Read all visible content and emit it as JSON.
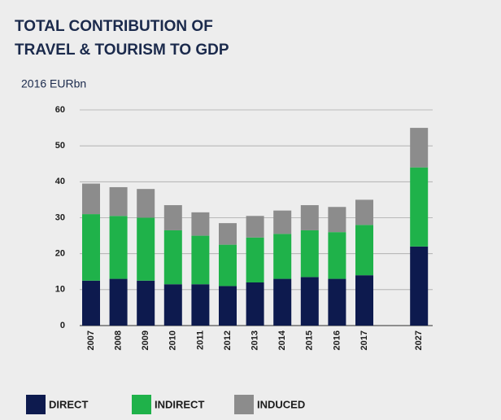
{
  "chart_data": {
    "type": "stacked_bar",
    "title": [
      "TOTAL CONTRIBUTION OF",
      "TRAVEL & TOURISM TO GDP"
    ],
    "y_label": "2016 EURbn",
    "categories": [
      "2007",
      "2008",
      "2009",
      "2010",
      "2011",
      "2012",
      "2013",
      "2014",
      "2015",
      "2016",
      "2017",
      "2027"
    ],
    "series": [
      {
        "name": "DIRECT",
        "color": "#0d1a4e",
        "values": [
          12.5,
          13,
          12.5,
          11.5,
          11.5,
          11,
          12,
          13,
          13.5,
          13,
          14,
          22
        ]
      },
      {
        "name": "INDIRECT",
        "color": "#1fb24a",
        "values": [
          18.5,
          17.5,
          17.5,
          15,
          13.5,
          11.5,
          12.5,
          12.5,
          13,
          13,
          14,
          22
        ]
      },
      {
        "name": "INDUCED",
        "color": "#8c8c8c",
        "values": [
          8.5,
          8,
          8,
          7,
          6.5,
          6,
          6,
          6.5,
          7,
          7,
          7,
          11
        ]
      }
    ],
    "ylim": [
      0,
      60
    ],
    "yticks": [
      0,
      10,
      20,
      30,
      40,
      50,
      60
    ],
    "grid": true
  }
}
